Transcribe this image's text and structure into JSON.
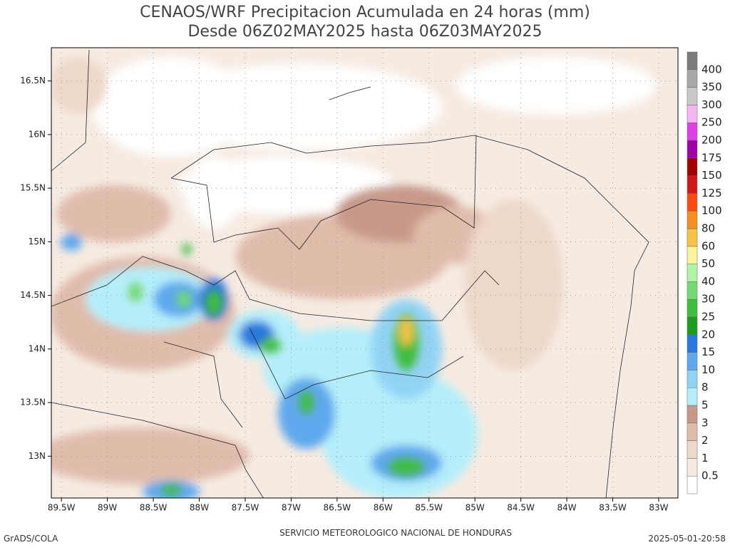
{
  "title": [
    "CENAOS/WRF Precipitacion Acumulada en 24 horas (mm)",
    "Desde 06Z02MAY2025 hasta 06Z03MAY2025"
  ],
  "map": {
    "xlim": [
      -89.61,
      -82.79
    ],
    "ylim": [
      12.61,
      16.81
    ],
    "lat_ticks": [
      {
        "value": 16.5,
        "label": "16.5N"
      },
      {
        "value": 16,
        "label": "16N"
      },
      {
        "value": 15.5,
        "label": "15.5N"
      },
      {
        "value": 15,
        "label": "15N"
      },
      {
        "value": 14.5,
        "label": "14.5N"
      },
      {
        "value": 14,
        "label": "14N"
      },
      {
        "value": 13.5,
        "label": "13.5N"
      },
      {
        "value": 13,
        "label": "13N"
      }
    ],
    "lon_ticks": [
      {
        "value": -89.5,
        "label": "89.5W"
      },
      {
        "value": -89,
        "label": "89W"
      },
      {
        "value": -88.5,
        "label": "88.5W"
      },
      {
        "value": -88,
        "label": "88W"
      },
      {
        "value": -87.5,
        "label": "87.5W"
      },
      {
        "value": -87,
        "label": "87W"
      },
      {
        "value": -86.5,
        "label": "86.5W"
      },
      {
        "value": -86,
        "label": "86W"
      },
      {
        "value": -85.5,
        "label": "85.5W"
      },
      {
        "value": -85,
        "label": "85W"
      },
      {
        "value": -84.5,
        "label": "84.5W"
      },
      {
        "value": -84,
        "label": "84W"
      },
      {
        "value": -83.5,
        "label": "83.5W"
      },
      {
        "value": -83,
        "label": "83W"
      }
    ],
    "grid": true
  },
  "colorbar": {
    "levels": [
      0.5,
      1,
      2,
      3,
      5,
      8,
      10,
      15,
      20,
      25,
      30,
      40,
      50,
      60,
      80,
      100,
      125,
      150,
      175,
      200,
      250,
      300,
      350,
      400
    ],
    "colors": [
      "#ffffff",
      "#f6ebe2",
      "#eed8ca",
      "#e0bcab",
      "#c8998a",
      "#b4eefa",
      "#92d3f5",
      "#5ea8ee",
      "#2b79df",
      "#1e9a1e",
      "#3fbd3f",
      "#73d973",
      "#b2f2a9",
      "#f7f59e",
      "#f4c246",
      "#f48f22",
      "#ff4a10",
      "#d01818",
      "#a30000",
      "#a000a8",
      "#e040e8",
      "#f7b4f5",
      "#c8c8c8",
      "#a8a8a8",
      "#7c7c7c"
    ]
  },
  "footer": {
    "left": "GrADS/COLA",
    "center": "SERVICIO METEOROLOGICO NACIONAL DE HONDURAS",
    "right": "2025-05-01-20:58"
  }
}
